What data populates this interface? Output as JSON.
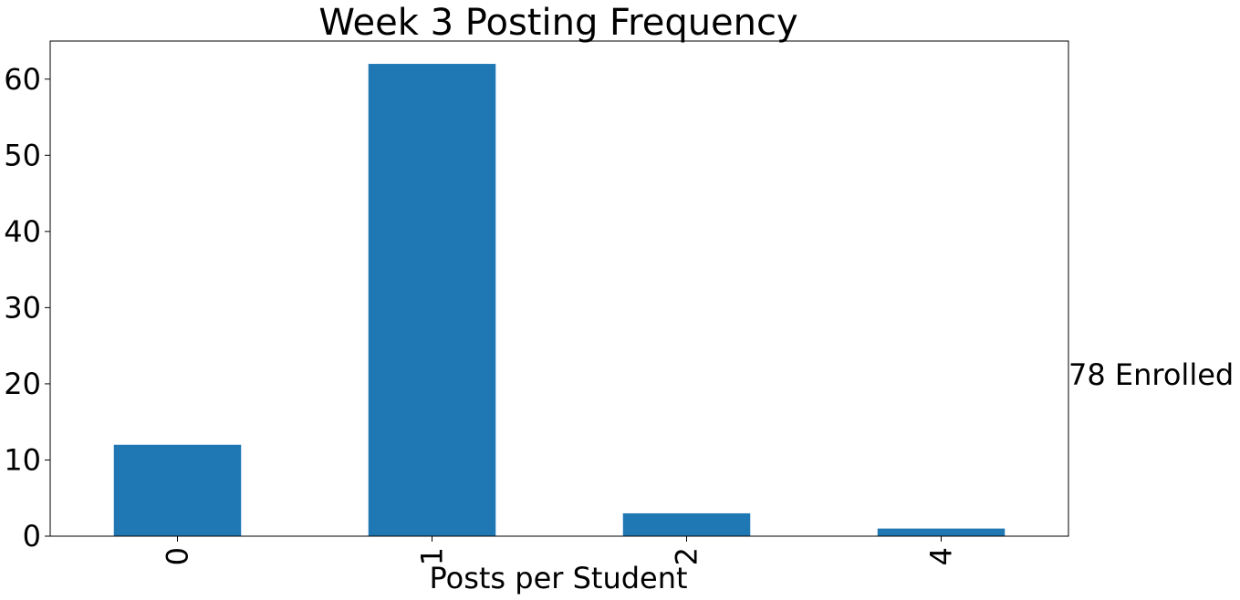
{
  "chart_data": {
    "type": "bar",
    "title": "Week 3 Posting Frequency",
    "xlabel": "Posts per Student",
    "ylabel": "",
    "categories": [
      "0",
      "1",
      "2",
      "4"
    ],
    "values": [
      12,
      62,
      3,
      1
    ],
    "ylim": [
      0,
      65
    ],
    "yticks": [
      0,
      10,
      20,
      30,
      40,
      50,
      60
    ],
    "bar_color": "#1f77b4",
    "grid": false,
    "legend": null,
    "annotation": "78 Enrolled"
  }
}
